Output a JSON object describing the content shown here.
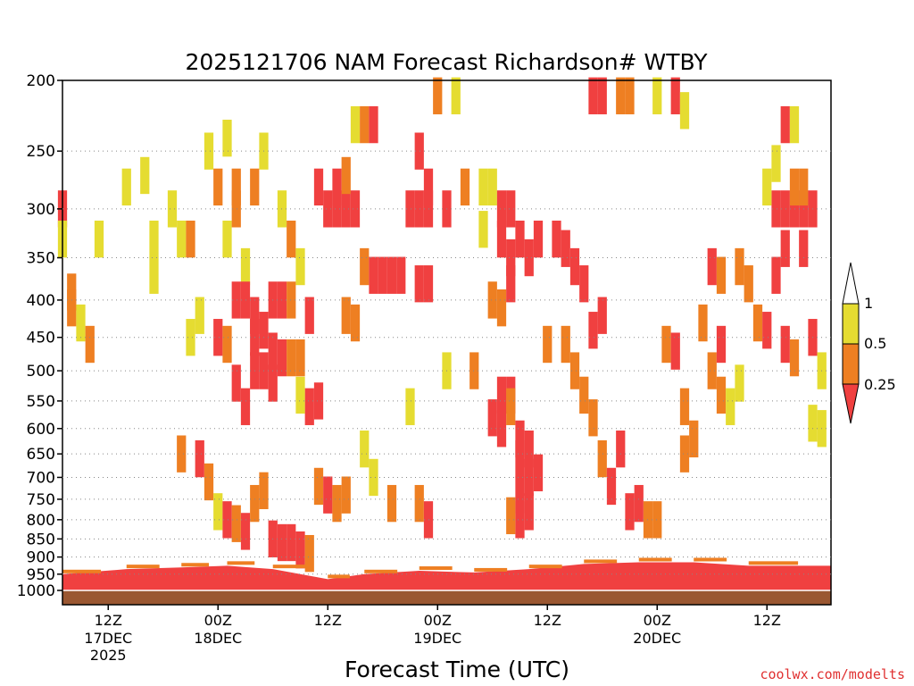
{
  "chart_data": {
    "type": "heatmap",
    "title": "2025121706 NAM Forecast Richardson# WTBY",
    "xlabel": "Forecast Time (UTC)",
    "ylabel": "",
    "y_scale": "log",
    "ylim": [
      1000,
      200
    ],
    "y_ticks": [
      200,
      250,
      300,
      350,
      400,
      450,
      500,
      550,
      600,
      650,
      700,
      750,
      800,
      850,
      900,
      950,
      1000
    ],
    "xlim": [
      7,
      91
    ],
    "x_ticks": [
      {
        "hour": 12,
        "label": "12Z",
        "sub": "17DEC",
        "sub2": "2025"
      },
      {
        "hour": 24,
        "label": "00Z",
        "sub": "18DEC",
        "sub2": ""
      },
      {
        "hour": 36,
        "label": "12Z",
        "sub": "",
        "sub2": ""
      },
      {
        "hour": 48,
        "label": "00Z",
        "sub": "19DEC",
        "sub2": ""
      },
      {
        "hour": 60,
        "label": "12Z",
        "sub": "",
        "sub2": ""
      },
      {
        "hour": 72,
        "label": "00Z",
        "sub": "20DEC",
        "sub2": ""
      },
      {
        "hour": 84,
        "label": "12Z",
        "sub": "",
        "sub2": ""
      }
    ],
    "gridlines": "dotted horizontal at pressure ticks",
    "legend": {
      "placement": "right",
      "labels": [
        "1",
        "0.5",
        "0.25"
      ],
      "bins": [
        {
          "range": "< 0.25",
          "color": "#f04040"
        },
        {
          "range": "0.25 - 0.5",
          "color": "#ee7f22"
        },
        {
          "range": "0.5 - 1",
          "color": "#e5dc31"
        },
        {
          "range": "> 1",
          "color": "#ffffff"
        }
      ]
    },
    "surface_color": "#9a5731",
    "boundary_layer": [
      {
        "hour": 7,
        "top_hpa": 950
      },
      {
        "hour": 14,
        "top_hpa": 935
      },
      {
        "hour": 20,
        "top_hpa": 930
      },
      {
        "hour": 25,
        "top_hpa": 925
      },
      {
        "hour": 30,
        "top_hpa": 935
      },
      {
        "hour": 36,
        "top_hpa": 965
      },
      {
        "hour": 40,
        "top_hpa": 950
      },
      {
        "hour": 46,
        "top_hpa": 940
      },
      {
        "hour": 52,
        "top_hpa": 945
      },
      {
        "hour": 58,
        "top_hpa": 935
      },
      {
        "hour": 64,
        "top_hpa": 920
      },
      {
        "hour": 70,
        "top_hpa": 915
      },
      {
        "hour": 76,
        "top_hpa": 915
      },
      {
        "hour": 82,
        "top_hpa": 925
      },
      {
        "hour": 91,
        "top_hpa": 925
      }
    ],
    "cells": [
      {
        "hour": 7,
        "hpa": 300,
        "bin": 0
      },
      {
        "hour": 7,
        "hpa": 330,
        "bin": 2
      },
      {
        "hour": 8,
        "hpa": 390,
        "bin": 1
      },
      {
        "hour": 8,
        "hpa": 410,
        "bin": 1
      },
      {
        "hour": 9,
        "hpa": 430,
        "bin": 2
      },
      {
        "hour": 10,
        "hpa": 460,
        "bin": 1
      },
      {
        "hour": 11,
        "hpa": 330,
        "bin": 2
      },
      {
        "hour": 14,
        "hpa": 280,
        "bin": 2
      },
      {
        "hour": 16,
        "hpa": 270,
        "bin": 2
      },
      {
        "hour": 17,
        "hpa": 330,
        "bin": 2
      },
      {
        "hour": 17,
        "hpa": 370,
        "bin": 2
      },
      {
        "hour": 19,
        "hpa": 300,
        "bin": 2
      },
      {
        "hour": 20,
        "hpa": 330,
        "bin": 2
      },
      {
        "hour": 21,
        "hpa": 330,
        "bin": 1
      },
      {
        "hour": 23,
        "hpa": 250,
        "bin": 2
      },
      {
        "hour": 24,
        "hpa": 280,
        "bin": 1
      },
      {
        "hour": 25,
        "hpa": 240,
        "bin": 2
      },
      {
        "hour": 25,
        "hpa": 330,
        "bin": 2
      },
      {
        "hour": 26,
        "hpa": 300,
        "bin": 1
      },
      {
        "hour": 26,
        "hpa": 280,
        "bin": 1
      },
      {
        "hour": 27,
        "hpa": 360,
        "bin": 2
      },
      {
        "hour": 28,
        "hpa": 280,
        "bin": 1
      },
      {
        "hour": 29,
        "hpa": 250,
        "bin": 2
      },
      {
        "hour": 31,
        "hpa": 300,
        "bin": 2
      },
      {
        "hour": 32,
        "hpa": 330,
        "bin": 1
      },
      {
        "hour": 33,
        "hpa": 360,
        "bin": 2
      },
      {
        "hour": 35,
        "hpa": 280,
        "bin": 0
      },
      {
        "hour": 36,
        "hpa": 300,
        "bin": 0
      },
      {
        "hour": 37,
        "hpa": 300,
        "bin": 0
      },
      {
        "hour": 37,
        "hpa": 280,
        "bin": 0
      },
      {
        "hour": 38,
        "hpa": 300,
        "bin": 0
      },
      {
        "hour": 38,
        "hpa": 270,
        "bin": 1
      },
      {
        "hour": 39,
        "hpa": 300,
        "bin": 0
      },
      {
        "hour": 40,
        "hpa": 360,
        "bin": 1
      },
      {
        "hour": 39,
        "hpa": 230,
        "bin": 2
      },
      {
        "hour": 40,
        "hpa": 230,
        "bin": 1
      },
      {
        "hour": 41,
        "hpa": 230,
        "bin": 0
      },
      {
        "hour": 41,
        "hpa": 370,
        "bin": 0
      },
      {
        "hour": 42,
        "hpa": 370,
        "bin": 0
      },
      {
        "hour": 43,
        "hpa": 370,
        "bin": 0
      },
      {
        "hour": 44,
        "hpa": 370,
        "bin": 0
      },
      {
        "hour": 45,
        "hpa": 300,
        "bin": 0
      },
      {
        "hour": 46,
        "hpa": 300,
        "bin": 0
      },
      {
        "hour": 47,
        "hpa": 300,
        "bin": 0
      },
      {
        "hour": 46,
        "hpa": 380,
        "bin": 0
      },
      {
        "hour": 47,
        "hpa": 380,
        "bin": 0
      },
      {
        "hour": 46,
        "hpa": 250,
        "bin": 0
      },
      {
        "hour": 47,
        "hpa": 280,
        "bin": 0
      },
      {
        "hour": 49,
        "hpa": 300,
        "bin": 0
      },
      {
        "hour": 48,
        "hpa": 210,
        "bin": 1
      },
      {
        "hour": 50,
        "hpa": 210,
        "bin": 2
      },
      {
        "hour": 51,
        "hpa": 280,
        "bin": 1
      },
      {
        "hour": 53,
        "hpa": 280,
        "bin": 2
      },
      {
        "hour": 54,
        "hpa": 280,
        "bin": 2
      },
      {
        "hour": 55,
        "hpa": 300,
        "bin": 0
      },
      {
        "hour": 56,
        "hpa": 300,
        "bin": 0
      },
      {
        "hour": 55,
        "hpa": 330,
        "bin": 0
      },
      {
        "hour": 56,
        "hpa": 350,
        "bin": 0
      },
      {
        "hour": 57,
        "hpa": 330,
        "bin": 0
      },
      {
        "hour": 58,
        "hpa": 350,
        "bin": 0
      },
      {
        "hour": 59,
        "hpa": 330,
        "bin": 0
      },
      {
        "hour": 61,
        "hpa": 330,
        "bin": 0
      },
      {
        "hour": 62,
        "hpa": 340,
        "bin": 0
      },
      {
        "hour": 63,
        "hpa": 360,
        "bin": 0
      },
      {
        "hour": 64,
        "hpa": 380,
        "bin": 0
      },
      {
        "hour": 65,
        "hpa": 210,
        "bin": 0
      },
      {
        "hour": 66,
        "hpa": 210,
        "bin": 0
      },
      {
        "hour": 68,
        "hpa": 210,
        "bin": 1
      },
      {
        "hour": 69,
        "hpa": 210,
        "bin": 1
      },
      {
        "hour": 72,
        "hpa": 210,
        "bin": 2
      },
      {
        "hour": 74,
        "hpa": 210,
        "bin": 0
      },
      {
        "hour": 75,
        "hpa": 220,
        "bin": 2
      },
      {
        "hour": 78,
        "hpa": 360,
        "bin": 0
      },
      {
        "hour": 79,
        "hpa": 370,
        "bin": 1
      },
      {
        "hour": 81,
        "hpa": 360,
        "bin": 1
      },
      {
        "hour": 82,
        "hpa": 380,
        "bin": 1
      },
      {
        "hour": 83,
        "hpa": 430,
        "bin": 1
      },
      {
        "hour": 85,
        "hpa": 300,
        "bin": 0
      },
      {
        "hour": 86,
        "hpa": 300,
        "bin": 0
      },
      {
        "hour": 87,
        "hpa": 300,
        "bin": 0
      },
      {
        "hour": 88,
        "hpa": 300,
        "bin": 0
      },
      {
        "hour": 89,
        "hpa": 300,
        "bin": 0
      },
      {
        "hour": 87,
        "hpa": 280,
        "bin": 1
      },
      {
        "hour": 88,
        "hpa": 280,
        "bin": 1
      },
      {
        "hour": 86,
        "hpa": 340,
        "bin": 0
      },
      {
        "hour": 88,
        "hpa": 340,
        "bin": 0
      },
      {
        "hour": 85,
        "hpa": 370,
        "bin": 0
      },
      {
        "hour": 84,
        "hpa": 440,
        "bin": 0
      },
      {
        "hour": 86,
        "hpa": 460,
        "bin": 0
      },
      {
        "hour": 87,
        "hpa": 480,
        "bin": 1
      },
      {
        "hour": 89,
        "hpa": 450,
        "bin": 0
      },
      {
        "hour": 85,
        "hpa": 260,
        "bin": 2
      },
      {
        "hour": 84,
        "hpa": 280,
        "bin": 2
      },
      {
        "hour": 86,
        "hpa": 230,
        "bin": 0
      },
      {
        "hour": 87,
        "hpa": 230,
        "bin": 2
      },
      {
        "hour": 90,
        "hpa": 500,
        "bin": 2
      },
      {
        "hour": 90,
        "hpa": 600,
        "bin": 2
      },
      {
        "hour": 89,
        "hpa": 590,
        "bin": 2
      },
      {
        "hour": 26,
        "hpa": 400,
        "bin": 0
      },
      {
        "hour": 27,
        "hpa": 400,
        "bin": 0
      },
      {
        "hour": 28,
        "hpa": 420,
        "bin": 0
      },
      {
        "hour": 29,
        "hpa": 440,
        "bin": 0
      },
      {
        "hour": 30,
        "hpa": 470,
        "bin": 0
      },
      {
        "hour": 31,
        "hpa": 480,
        "bin": 0
      },
      {
        "hour": 32,
        "hpa": 480,
        "bin": 1
      },
      {
        "hour": 33,
        "hpa": 480,
        "bin": 1
      },
      {
        "hour": 30,
        "hpa": 400,
        "bin": 0
      },
      {
        "hour": 31,
        "hpa": 400,
        "bin": 0
      },
      {
        "hour": 32,
        "hpa": 400,
        "bin": 1
      },
      {
        "hour": 28,
        "hpa": 450,
        "bin": 0
      },
      {
        "hour": 29,
        "hpa": 500,
        "bin": 0
      },
      {
        "hour": 28,
        "hpa": 500,
        "bin": 0
      },
      {
        "hour": 26,
        "hpa": 520,
        "bin": 0
      },
      {
        "hour": 27,
        "hpa": 560,
        "bin": 0
      },
      {
        "hour": 24,
        "hpa": 450,
        "bin": 0
      },
      {
        "hour": 25,
        "hpa": 460,
        "bin": 1
      },
      {
        "hour": 22,
        "hpa": 420,
        "bin": 2
      },
      {
        "hour": 21,
        "hpa": 450,
        "bin": 2
      },
      {
        "hour": 30,
        "hpa": 520,
        "bin": 0
      },
      {
        "hour": 34,
        "hpa": 420,
        "bin": 0
      },
      {
        "hour": 35,
        "hpa": 550,
        "bin": 0
      },
      {
        "hour": 34,
        "hpa": 560,
        "bin": 0
      },
      {
        "hour": 33,
        "hpa": 540,
        "bin": 2
      },
      {
        "hour": 38,
        "hpa": 420,
        "bin": 1
      },
      {
        "hour": 39,
        "hpa": 430,
        "bin": 1
      },
      {
        "hour": 55,
        "hpa": 540,
        "bin": 0
      },
      {
        "hour": 56,
        "hpa": 540,
        "bin": 0
      },
      {
        "hour": 54,
        "hpa": 580,
        "bin": 0
      },
      {
        "hour": 55,
        "hpa": 600,
        "bin": 0
      },
      {
        "hour": 56,
        "hpa": 560,
        "bin": 1
      },
      {
        "hour": 57,
        "hpa": 620,
        "bin": 0
      },
      {
        "hour": 58,
        "hpa": 640,
        "bin": 0
      },
      {
        "hour": 57,
        "hpa": 660,
        "bin": 0
      },
      {
        "hour": 58,
        "hpa": 700,
        "bin": 0
      },
      {
        "hour": 59,
        "hpa": 690,
        "bin": 0
      },
      {
        "hour": 57,
        "hpa": 740,
        "bin": 0
      },
      {
        "hour": 58,
        "hpa": 780,
        "bin": 0
      },
      {
        "hour": 57,
        "hpa": 800,
        "bin": 0
      },
      {
        "hour": 56,
        "hpa": 790,
        "bin": 1
      },
      {
        "hour": 54,
        "hpa": 400,
        "bin": 1
      },
      {
        "hour": 55,
        "hpa": 410,
        "bin": 1
      },
      {
        "hour": 56,
        "hpa": 380,
        "bin": 0
      },
      {
        "hour": 60,
        "hpa": 460,
        "bin": 1
      },
      {
        "hour": 62,
        "hpa": 460,
        "bin": 1
      },
      {
        "hour": 63,
        "hpa": 500,
        "bin": 1
      },
      {
        "hour": 64,
        "hpa": 540,
        "bin": 1
      },
      {
        "hour": 65,
        "hpa": 440,
        "bin": 0
      },
      {
        "hour": 66,
        "hpa": 420,
        "bin": 0
      },
      {
        "hour": 65,
        "hpa": 580,
        "bin": 1
      },
      {
        "hour": 66,
        "hpa": 660,
        "bin": 1
      },
      {
        "hour": 67,
        "hpa": 720,
        "bin": 0
      },
      {
        "hour": 68,
        "hpa": 640,
        "bin": 0
      },
      {
        "hour": 69,
        "hpa": 780,
        "bin": 0
      },
      {
        "hour": 70,
        "hpa": 760,
        "bin": 0
      },
      {
        "hour": 71,
        "hpa": 800,
        "bin": 1
      },
      {
        "hour": 72,
        "hpa": 800,
        "bin": 1
      },
      {
        "hour": 73,
        "hpa": 460,
        "bin": 1
      },
      {
        "hour": 74,
        "hpa": 470,
        "bin": 0
      },
      {
        "hour": 75,
        "hpa": 560,
        "bin": 1
      },
      {
        "hour": 76,
        "hpa": 620,
        "bin": 1
      },
      {
        "hour": 75,
        "hpa": 650,
        "bin": 1
      },
      {
        "hour": 77,
        "hpa": 430,
        "bin": 1
      },
      {
        "hour": 78,
        "hpa": 500,
        "bin": 1
      },
      {
        "hour": 79,
        "hpa": 540,
        "bin": 1
      },
      {
        "hour": 80,
        "hpa": 560,
        "bin": 2
      },
      {
        "hour": 81,
        "hpa": 520,
        "bin": 2
      },
      {
        "hour": 79,
        "hpa": 460,
        "bin": 0
      },
      {
        "hour": 20,
        "hpa": 650,
        "bin": 1
      },
      {
        "hour": 22,
        "hpa": 660,
        "bin": 0
      },
      {
        "hour": 23,
        "hpa": 710,
        "bin": 1
      },
      {
        "hour": 24,
        "hpa": 780,
        "bin": 2
      },
      {
        "hour": 25,
        "hpa": 800,
        "bin": 0
      },
      {
        "hour": 26,
        "hpa": 810,
        "bin": 1
      },
      {
        "hour": 27,
        "hpa": 830,
        "bin": 0
      },
      {
        "hour": 28,
        "hpa": 760,
        "bin": 1
      },
      {
        "hour": 29,
        "hpa": 730,
        "bin": 1
      },
      {
        "hour": 30,
        "hpa": 850,
        "bin": 0
      },
      {
        "hour": 31,
        "hpa": 860,
        "bin": 0
      },
      {
        "hour": 32,
        "hpa": 860,
        "bin": 0
      },
      {
        "hour": 33,
        "hpa": 880,
        "bin": 0
      },
      {
        "hour": 34,
        "hpa": 890,
        "bin": 1
      },
      {
        "hour": 35,
        "hpa": 720,
        "bin": 1
      },
      {
        "hour": 36,
        "hpa": 740,
        "bin": 0
      },
      {
        "hour": 37,
        "hpa": 760,
        "bin": 1
      },
      {
        "hour": 38,
        "hpa": 740,
        "bin": 1
      },
      {
        "hour": 43,
        "hpa": 760,
        "bin": 1
      },
      {
        "hour": 46,
        "hpa": 760,
        "bin": 1
      },
      {
        "hour": 47,
        "hpa": 800,
        "bin": 0
      },
      {
        "hour": 40,
        "hpa": 640,
        "bin": 2
      },
      {
        "hour": 41,
        "hpa": 700,
        "bin": 2
      },
      {
        "hour": 45,
        "hpa": 560,
        "bin": 2
      },
      {
        "hour": 49,
        "hpa": 500,
        "bin": 2
      },
      {
        "hour": 52,
        "hpa": 500,
        "bin": 1
      },
      {
        "hour": 53,
        "hpa": 320,
        "bin": 2
      }
    ]
  },
  "credit": "coolwx.com/modelts"
}
